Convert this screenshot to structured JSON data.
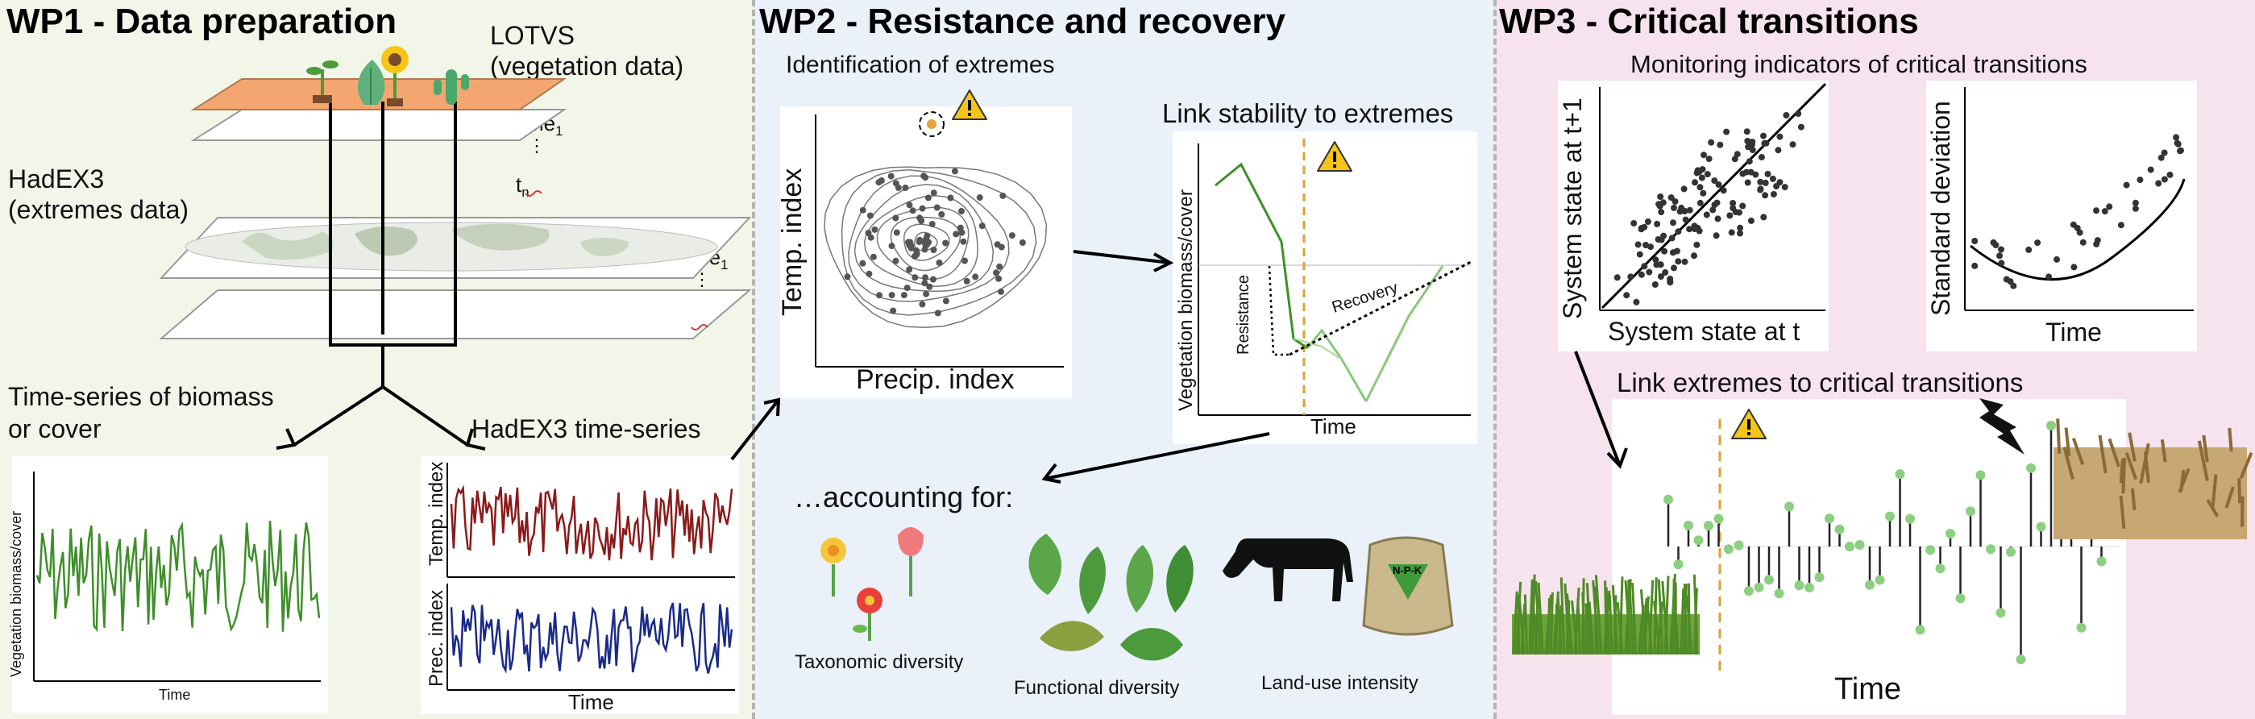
{
  "wp1": {
    "title": "WP1 - Data preparation",
    "lotvs_line1": "LOTVS",
    "lotvs_line2": "(vegetation data)",
    "time1_top": "time",
    "tn_top": "t",
    "hadex_line1": "HadEX3",
    "hadex_line2": "(extremes data)",
    "time1_bottom": "time",
    "tn_bottom": "t",
    "sub_1": "1",
    "sub_n": "n",
    "ts_line1": "Time-series of biomass",
    "ts_line2": "or cover",
    "hadex_ts": "HadEX3 time-series",
    "biomass_ylabel": "Vegetation biomass/cover",
    "biomass_xlabel": "Time",
    "temp_ylabel": "Temp. index",
    "prec_ylabel": "Prec. index",
    "hadex_xlabel": "Time"
  },
  "wp2": {
    "title": "WP2 - Resistance and recovery",
    "identification": "Identification of extremes",
    "scatter_ylabel": "Temp. index",
    "scatter_xlabel": "Precip. index",
    "link_title": "Link stability to extremes",
    "link_ylabel": "Vegetation biomass/cover",
    "link_xlabel": "Time",
    "resistance": "Resistance",
    "recovery": "Recovery",
    "accounting": "…accounting for:",
    "taxonomic": "Taxonomic diversity",
    "functional": "Functional diversity",
    "landuse": "Land-use intensity",
    "npk": "N-P-K"
  },
  "wp3": {
    "title": "WP3 - Critical transitions",
    "monitoring": "Monitoring indicators of critical transitions",
    "state_ylabel": "System state at t+1",
    "state_xlabel": "System state at t",
    "sd_ylabel": "Standard deviation",
    "sd_xlabel": "Time",
    "link_extremes": "Link extremes to critical transitions",
    "bottom_xlabel": "Time"
  },
  "colors": {
    "wp1_bg": "#f1f6e9",
    "wp2_bg": "#eaf1f9",
    "wp3_bg": "#f6e3ee",
    "green_series": "#3f8f2a",
    "temp_series": "#8b1a1a",
    "prec_series": "#1a2a8b",
    "warning": "#f5c518",
    "extreme_marker": "#e8a23a",
    "dashed_extreme": "#e0a030"
  },
  "icons": [
    "warning-icon",
    "plant-icon",
    "sunflower-icon",
    "cactus-icon",
    "leaf-icon",
    "flower-icon",
    "cow-icon",
    "fertilizer-bag-icon",
    "lightning-icon",
    "grass-image",
    "dead-crop-image"
  ]
}
